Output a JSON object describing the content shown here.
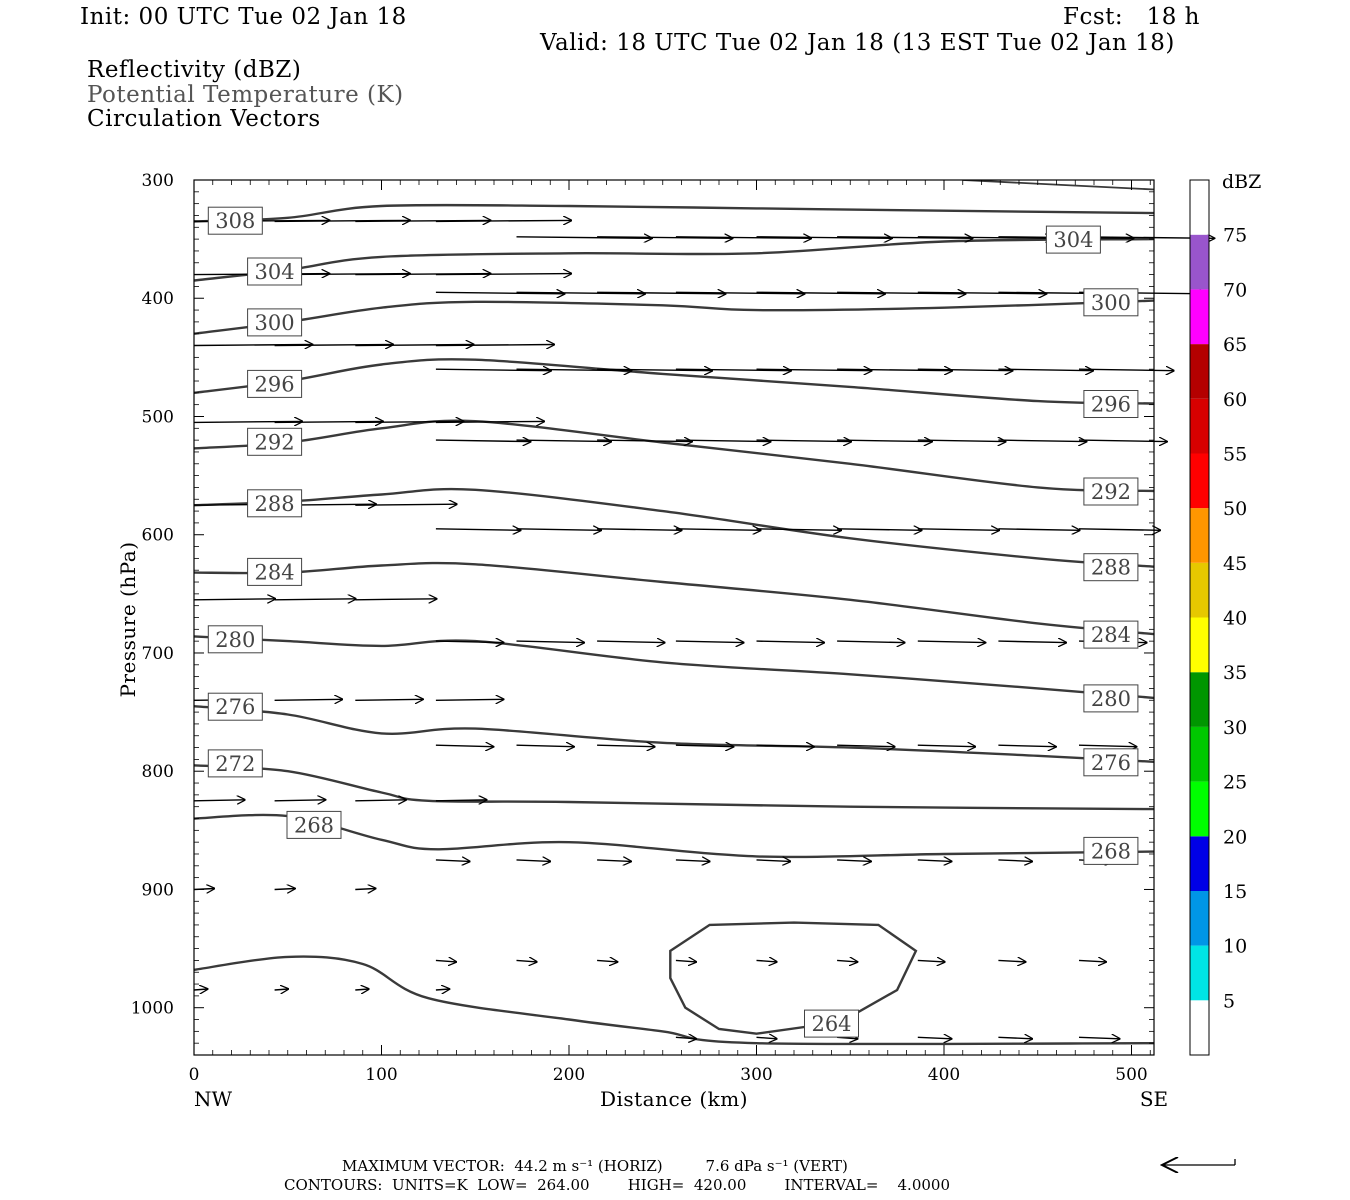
{
  "header": {
    "init": "Init: 00 UTC Tue 02 Jan 18",
    "fcst": "Fcst:   18 h",
    "valid": "Valid: 18 UTC Tue 02 Jan 18 (13 EST Tue 02 Jan 18)",
    "fields": [
      "Reflectivity (dBZ)",
      "Potential Temperature (K)",
      "Circulation Vectors"
    ]
  },
  "chart_data": {
    "type": "cross-section",
    "xlabel": "Distance (km)",
    "ylabel": "Pressure (hPa)",
    "x_ticks": [
      "0",
      "100",
      "200",
      "300",
      "400",
      "500"
    ],
    "x_end_labels": {
      "left": "NW",
      "right": "SE"
    },
    "y_ticks": [
      "300",
      "400",
      "500",
      "600",
      "700",
      "800",
      "900",
      "1000"
    ],
    "xlim": [
      0,
      512
    ],
    "ylim": [
      1040,
      300
    ],
    "y_scale": "linear, pressure decreasing upward",
    "isentropes": [
      {
        "theta": 308,
        "label": "308",
        "points": [
          [
            0,
            335
          ],
          [
            50,
            332
          ],
          [
            100,
            322
          ],
          [
            200,
            322
          ],
          [
            300,
            324
          ],
          [
            400,
            326
          ],
          [
            512,
            328
          ]
        ],
        "labels_at": [
          [
            22,
            334
          ]
        ]
      },
      {
        "theta": 304,
        "label": "304",
        "points": [
          [
            0,
            385
          ],
          [
            50,
            376
          ],
          [
            100,
            365
          ],
          [
            200,
            362
          ],
          [
            300,
            362
          ],
          [
            400,
            352
          ],
          [
            512,
            350
          ]
        ],
        "labels_at": [
          [
            43,
            377
          ],
          [
            469,
            350
          ]
        ]
      },
      {
        "theta": 300,
        "label": "300",
        "points": [
          [
            0,
            430
          ],
          [
            50,
            420
          ],
          [
            100,
            408
          ],
          [
            150,
            403
          ],
          [
            250,
            406
          ],
          [
            300,
            410
          ],
          [
            400,
            408
          ],
          [
            512,
            402
          ]
        ],
        "labels_at": [
          [
            43,
            420
          ],
          [
            489,
            403
          ]
        ]
      },
      {
        "theta": 296,
        "label": "296",
        "points": [
          [
            0,
            480
          ],
          [
            50,
            470
          ],
          [
            100,
            456
          ],
          [
            150,
            452
          ],
          [
            250,
            464
          ],
          [
            350,
            475
          ],
          [
            450,
            487
          ],
          [
            512,
            489
          ]
        ],
        "labels_at": [
          [
            43,
            472
          ],
          [
            489,
            489
          ]
        ]
      },
      {
        "theta": 292,
        "label": "292",
        "points": [
          [
            0,
            527
          ],
          [
            50,
            522
          ],
          [
            100,
            510
          ],
          [
            150,
            504
          ],
          [
            250,
            522
          ],
          [
            350,
            540
          ],
          [
            450,
            560
          ],
          [
            512,
            563
          ]
        ],
        "labels_at": [
          [
            43,
            521
          ],
          [
            489,
            563
          ]
        ]
      },
      {
        "theta": 288,
        "label": "288",
        "points": [
          [
            0,
            575
          ],
          [
            50,
            572
          ],
          [
            100,
            566
          ],
          [
            150,
            562
          ],
          [
            250,
            580
          ],
          [
            350,
            603
          ],
          [
            450,
            620
          ],
          [
            512,
            627
          ]
        ],
        "labels_at": [
          [
            43,
            573
          ],
          [
            489,
            627
          ]
        ]
      },
      {
        "theta": 284,
        "label": "284",
        "points": [
          [
            0,
            632
          ],
          [
            50,
            632
          ],
          [
            100,
            626
          ],
          [
            150,
            625
          ],
          [
            250,
            640
          ],
          [
            350,
            655
          ],
          [
            450,
            675
          ],
          [
            512,
            684
          ]
        ],
        "labels_at": [
          [
            43,
            631
          ],
          [
            489,
            684
          ]
        ]
      },
      {
        "theta": 280,
        "label": "280",
        "points": [
          [
            0,
            686
          ],
          [
            50,
            690
          ],
          [
            100,
            694
          ],
          [
            150,
            690
          ],
          [
            250,
            708
          ],
          [
            350,
            718
          ],
          [
            450,
            730
          ],
          [
            512,
            738
          ]
        ],
        "labels_at": [
          [
            22,
            688
          ],
          [
            489,
            738
          ]
        ]
      },
      {
        "theta": 276,
        "label": "276",
        "points": [
          [
            0,
            745
          ],
          [
            50,
            752
          ],
          [
            100,
            768
          ],
          [
            150,
            764
          ],
          [
            250,
            776
          ],
          [
            350,
            780
          ],
          [
            450,
            787
          ],
          [
            512,
            792
          ]
        ],
        "labels_at": [
          [
            22,
            745
          ],
          [
            489,
            792
          ]
        ]
      },
      {
        "theta": 272,
        "label": "272",
        "points": [
          [
            0,
            795
          ],
          [
            50,
            800
          ],
          [
            100,
            818
          ],
          [
            125,
            825
          ],
          [
            200,
            826
          ],
          [
            350,
            830
          ],
          [
            512,
            832
          ]
        ],
        "labels_at": [
          [
            22,
            793
          ]
        ]
      },
      {
        "theta": 268,
        "label": "268",
        "points": [
          [
            0,
            840
          ],
          [
            50,
            838
          ],
          [
            100,
            858
          ],
          [
            130,
            866
          ],
          [
            200,
            860
          ],
          [
            300,
            872
          ],
          [
            400,
            870
          ],
          [
            512,
            868
          ]
        ],
        "labels_at": [
          [
            64,
            845
          ],
          [
            489,
            867
          ]
        ]
      },
      {
        "theta": 264,
        "label": "264",
        "points": [
          [
            0,
            968
          ],
          [
            50,
            957
          ],
          [
            90,
            963
          ],
          [
            125,
            992
          ],
          [
            200,
            1010
          ],
          [
            250,
            1020
          ],
          [
            300,
            1030
          ],
          [
            512,
            1030
          ]
        ],
        "labels_at": []
      },
      {
        "theta": 264,
        "label": "264",
        "closed": true,
        "points": [
          [
            254,
            952
          ],
          [
            275,
            930
          ],
          [
            320,
            928
          ],
          [
            365,
            930
          ],
          [
            385,
            952
          ],
          [
            375,
            985
          ],
          [
            345,
            1012
          ],
          [
            300,
            1022
          ],
          [
            280,
            1018
          ],
          [
            262,
            1000
          ],
          [
            254,
            975
          ],
          [
            254,
            952
          ]
        ],
        "labels_at": [
          [
            340,
            1013
          ]
        ]
      },
      {
        "theta": null,
        "label": "",
        "points": [
          [
            410,
            300
          ],
          [
            512,
            308
          ]
        ],
        "labels_at": []
      }
    ],
    "vector_columns_km": [
      0,
      43,
      86,
      129,
      172,
      215,
      257,
      300,
      343,
      386,
      429,
      472
    ],
    "vectors": [
      {
        "y": 335,
        "u": [
          40,
          40,
          40,
          40
        ]
      },
      {
        "y": 348,
        "u": [
          0,
          0,
          0,
          0,
          40,
          40,
          40,
          40,
          40,
          40,
          40,
          40
        ]
      },
      {
        "y": 380,
        "u": [
          40,
          40,
          40,
          40
        ]
      },
      {
        "y": 395,
        "u": [
          0,
          0,
          0,
          38,
          38,
          38,
          38,
          38,
          38,
          38,
          38,
          38
        ]
      },
      {
        "y": 440,
        "u": [
          35,
          35,
          35,
          35
        ]
      },
      {
        "y": 460,
        "u": [
          0,
          0,
          0,
          34,
          34,
          34,
          34,
          34,
          34,
          28,
          28,
          28
        ]
      },
      {
        "y": 505,
        "u": [
          32,
          32,
          32,
          32
        ]
      },
      {
        "y": 520,
        "u": [
          0,
          0,
          0,
          28,
          28,
          28,
          28,
          28,
          28,
          26,
          26,
          26
        ]
      },
      {
        "y": 575,
        "u": [
          30,
          30,
          30
        ]
      },
      {
        "y": 595,
        "u": [
          0,
          0,
          0,
          25,
          25,
          25,
          25,
          25,
          25,
          24,
          24,
          24
        ]
      },
      {
        "y": 655,
        "u": [
          24,
          24,
          24
        ]
      },
      {
        "y": 690,
        "u": [
          0,
          0,
          0,
          20,
          20,
          20,
          20,
          20,
          20,
          20,
          20,
          20
        ]
      },
      {
        "y": 740,
        "u": [
          20,
          20,
          20,
          20
        ]
      },
      {
        "y": 778,
        "u": [
          0,
          0,
          0,
          17,
          17,
          17,
          17,
          17,
          17,
          17,
          17,
          17
        ]
      },
      {
        "y": 825,
        "u": [
          15,
          15,
          15,
          15
        ]
      },
      {
        "y": 875,
        "u": [
          0,
          0,
          0,
          10,
          10,
          10,
          10,
          10,
          10,
          10,
          10,
          10
        ]
      },
      {
        "y": 900,
        "u": [
          6,
          6,
          6
        ]
      },
      {
        "y": 960,
        "u": [
          0,
          0,
          0,
          6,
          6,
          6,
          6,
          6,
          6,
          8,
          8,
          8
        ]
      },
      {
        "y": 985,
        "u": [
          4,
          4,
          4,
          4
        ]
      },
      {
        "y": 1025,
        "u": [
          0,
          0,
          0,
          0,
          0,
          0,
          6,
          6,
          6,
          10,
          10,
          12
        ]
      }
    ],
    "colorbar": {
      "title": "dBZ",
      "levels": [
        "5",
        "10",
        "15",
        "20",
        "25",
        "30",
        "35",
        "40",
        "45",
        "50",
        "55",
        "60",
        "65",
        "70",
        "75"
      ],
      "colors": [
        "#ffffff",
        "#00e5e5",
        "#0096e6",
        "#0000e6",
        "#00ff00",
        "#00c800",
        "#009600",
        "#ffff00",
        "#e6c800",
        "#ff9600",
        "#ff0000",
        "#d70000",
        "#b40000",
        "#ff00ff",
        "#9955cc",
        "#ffffff"
      ]
    }
  },
  "footer": {
    "max_vector": "MAXIMUM VECTOR:  44.2 m s⁻¹ (HORIZ)         7.6 dPa s⁻¹ (VERT)",
    "contours": "CONTOURS:  UNITS=K  LOW=  264.00        HIGH=  420.00        INTERVAL=    4.0000"
  }
}
